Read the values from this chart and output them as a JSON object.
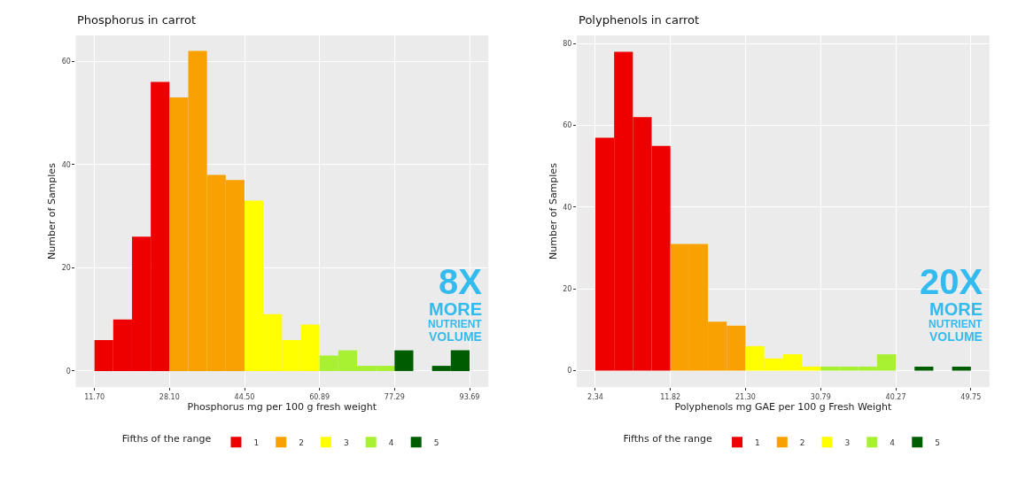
{
  "chart_data": [
    {
      "type": "histogram",
      "title": "Phosphorus in carrot",
      "xlabel": "Phosphorus mg per 100 g fresh weight",
      "ylabel": "Number of Samples",
      "legend_title": "Fifths of the range",
      "legend": "bottom",
      "grid": true,
      "bins": [
        11.7,
        15.8,
        19.9,
        24.0,
        28.1,
        32.2,
        36.3,
        40.4,
        44.5,
        48.6,
        52.7,
        56.8,
        60.89,
        64.99,
        69.09,
        73.19,
        77.29,
        81.39,
        85.49,
        89.59,
        93.69
      ],
      "series": [
        {
          "name": "1",
          "color": "#ee0000",
          "values": [
            6,
            10,
            26,
            56,
            null,
            null,
            null,
            null,
            null,
            null,
            null,
            null,
            null,
            null,
            null,
            null,
            null,
            null,
            null,
            null
          ]
        },
        {
          "name": "2",
          "color": "#f8a100",
          "values": [
            null,
            null,
            null,
            null,
            53,
            62,
            38,
            37,
            null,
            null,
            null,
            null,
            null,
            null,
            null,
            null,
            null,
            null,
            null,
            null
          ]
        },
        {
          "name": "3",
          "color": "#ffff00",
          "values": [
            null,
            null,
            null,
            null,
            null,
            null,
            null,
            null,
            33,
            11,
            6,
            9,
            null,
            null,
            null,
            null,
            null,
            null,
            null,
            null
          ]
        },
        {
          "name": "4",
          "color": "#a8f032",
          "values": [
            null,
            null,
            null,
            null,
            null,
            null,
            null,
            null,
            null,
            null,
            null,
            null,
            3,
            4,
            1,
            1,
            null,
            null,
            null,
            null
          ]
        },
        {
          "name": "5",
          "color": "#005c00",
          "values": [
            null,
            null,
            null,
            null,
            null,
            null,
            null,
            null,
            null,
            null,
            null,
            null,
            null,
            null,
            null,
            null,
            4,
            0,
            1,
            4
          ]
        }
      ],
      "xlim": [
        7.6,
        97.8
      ],
      "xticks": [
        {
          "value": 11.7,
          "label": "11.70"
        },
        {
          "value": 28.1,
          "label": "28.10"
        },
        {
          "value": 44.5,
          "label": "44.50"
        },
        60.89,
        77.29,
        93.69
      ],
      "ylim": [
        -3.1,
        65
      ],
      "yticks": [
        0,
        20,
        40,
        60
      ],
      "annotations": [
        "8X",
        "MORE",
        "NUTRIENT",
        "VOLUME"
      ]
    },
    {
      "type": "histogram",
      "title": "Polyphenols in carrot",
      "xlabel": "Polyphenols mg GAE per 100 g Fresh Weight",
      "ylabel": "Number of Samples",
      "legend_title": "Fifths of the range",
      "legend": "bottom",
      "grid": true,
      "bins": [
        2.34,
        4.71,
        7.08,
        9.45,
        11.82,
        14.19,
        16.56,
        18.93,
        21.3,
        23.67,
        26.05,
        28.42,
        30.79,
        33.16,
        35.53,
        37.9,
        40.27,
        42.64,
        45.01,
        47.38,
        49.75
      ],
      "series": [
        {
          "name": "1",
          "color": "#ee0000",
          "values": [
            57,
            78,
            62,
            55,
            null,
            null,
            null,
            null,
            null,
            null,
            null,
            null,
            null,
            null,
            null,
            null,
            null,
            null,
            null,
            null
          ]
        },
        {
          "name": "2",
          "color": "#f8a100",
          "values": [
            null,
            null,
            null,
            null,
            31,
            31,
            12,
            11,
            null,
            null,
            null,
            null,
            null,
            null,
            null,
            null,
            null,
            null,
            null,
            null
          ]
        },
        {
          "name": "3",
          "color": "#ffff00",
          "values": [
            null,
            null,
            null,
            null,
            null,
            null,
            null,
            null,
            6,
            3,
            4,
            1,
            null,
            null,
            null,
            null,
            null,
            null,
            null,
            null
          ]
        },
        {
          "name": "4",
          "color": "#a8f032",
          "values": [
            null,
            null,
            null,
            null,
            null,
            null,
            null,
            null,
            null,
            null,
            null,
            null,
            1,
            1,
            1,
            4,
            null,
            null,
            null,
            null
          ]
        },
        {
          "name": "5",
          "color": "#005c00",
          "values": [
            null,
            null,
            null,
            null,
            null,
            null,
            null,
            null,
            null,
            null,
            null,
            null,
            null,
            null,
            null,
            null,
            0,
            1,
            0,
            1
          ]
        }
      ],
      "xlim": [
        0.0,
        52.1
      ],
      "xticks": [
        2.34,
        11.82,
        {
          "value": 21.3,
          "label": "21.30"
        },
        30.79,
        40.27,
        49.75
      ],
      "ylim": [
        -4,
        82
      ],
      "yticks": [
        0,
        20,
        40,
        60,
        80
      ],
      "annotations": [
        "20X",
        "MORE",
        "NUTRIENT",
        "VOLUME"
      ]
    }
  ]
}
